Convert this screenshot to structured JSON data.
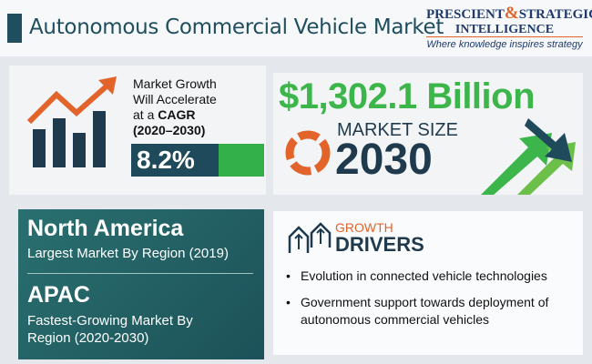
{
  "header": {
    "title": "Autonomous Commercial Vehicle Market"
  },
  "logo": {
    "name_left": "PRESCIENT",
    "ampersand": "&",
    "name_right": "STRATEGIC",
    "name_line2": "INTELLIGENCE",
    "tagline": "Where knowledge inspires strategy"
  },
  "growth": {
    "line1": "Market Growth",
    "line2": "Will Accelerate",
    "line3": "at a",
    "cagr_label": "CAGR",
    "period": "(2020–2030)",
    "cagr": "8.2%"
  },
  "market_size": {
    "value": "$1,302.1 Billion",
    "label": "MARKET SIZE",
    "year": "2030"
  },
  "regions": [
    {
      "name": "North America",
      "description": "Largest Market By Region (2019)"
    },
    {
      "name": "APAC",
      "description_line1": "Fastest-Growing Market By",
      "description_line2": "Region (2020-2030)"
    }
  ],
  "drivers": {
    "heading_top": "GROWTH",
    "heading_bottom": "DRIVERS",
    "items": [
      "Evolution in connected vehicle technologies",
      "Government support towards deployment of autonomous commercial vehicles"
    ]
  }
}
